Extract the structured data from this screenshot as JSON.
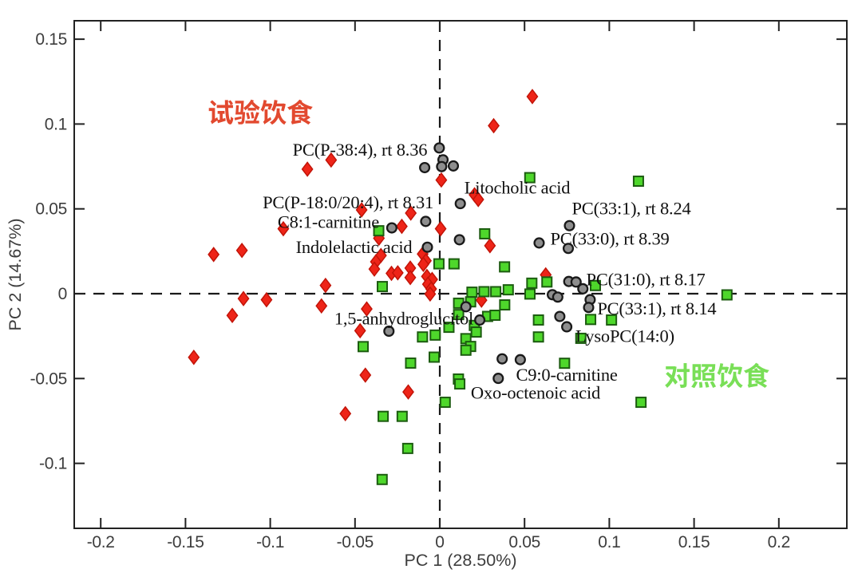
{
  "figure": {
    "kind": "PCA scatter biplot",
    "background": "#ffffff"
  },
  "chart_data": {
    "type": "scatter",
    "title": "",
    "xlabel": "PC 1 (28.50%)",
    "ylabel": "PC 2 (14.67%)",
    "xlim": [
      -0.21563,
      0.24011
    ],
    "ylim": [
      -0.13829,
      0.16087
    ],
    "x_ticks": [
      -0.2,
      -0.15,
      -0.1,
      -0.05,
      0,
      0.05,
      0.1,
      0.15,
      0.2
    ],
    "x_tick_labels": [
      "-0.2",
      "-0.15",
      "-0.1",
      "-0.05",
      "0",
      "0.05",
      "0.1",
      "0.15",
      "0.2"
    ],
    "y_ticks": [
      0.15,
      0.1,
      0.05,
      0,
      -0.05,
      -0.1
    ],
    "y_tick_labels": [
      "0.15",
      "0.1",
      "0.05",
      "0",
      "-0.05",
      "-0.1"
    ],
    "grid": false,
    "legend_position": "none",
    "zero_lines": {
      "x": 0,
      "y": 0,
      "style": "dashed",
      "color": "#1a1a1a"
    },
    "series": [
      {
        "name": "试验饮食",
        "name_en": "experimental diet",
        "marker": "diamond",
        "fill": "#ee2418",
        "edge": "#c21408",
        "points": [
          [
            0.0546,
            0.1162
          ],
          [
            0.0318,
            0.099
          ],
          [
            -0.0781,
            0.0734
          ],
          [
            -0.0641,
            0.0788
          ],
          [
            0.0009,
            0.067
          ],
          [
            0.0205,
            0.0583
          ],
          [
            0.0227,
            0.0555
          ],
          [
            -0.0461,
            0.0494
          ],
          [
            -0.0171,
            0.0475
          ],
          [
            -0.0224,
            0.0397
          ],
          [
            -0.0923,
            0.0383
          ],
          [
            -0.0359,
            0.0327
          ],
          [
            0.0005,
            0.0383
          ],
          [
            -0.1334,
            0.0231
          ],
          [
            -0.1167,
            0.0255
          ],
          [
            0.0296,
            0.0283
          ],
          [
            -0.0347,
            0.0225
          ],
          [
            -0.0101,
            0.0234
          ],
          [
            -0.0377,
            0.0188
          ],
          [
            -0.0082,
            0.0194
          ],
          [
            -0.0097,
            0.0173
          ],
          [
            -0.0386,
            0.0145
          ],
          [
            -0.0174,
            0.0151
          ],
          [
            -0.0285,
            0.012
          ],
          [
            -0.0248,
            0.0123
          ],
          [
            -0.0174,
            0.0095
          ],
          [
            -0.0076,
            0.0102
          ],
          [
            -0.0045,
            0.0084
          ],
          [
            -0.007,
            0.0056
          ],
          [
            -0.0051,
            0.0028
          ],
          [
            -0.0057,
            -0.0002
          ],
          [
            0.0625,
            0.0111
          ],
          [
            -0.0674,
            0.0049
          ],
          [
            -0.1158,
            -0.0029
          ],
          [
            -0.1022,
            -0.0036
          ],
          [
            -0.1224,
            -0.0128
          ],
          [
            -0.0698,
            -0.0072
          ],
          [
            -0.0431,
            -0.009
          ],
          [
            0.0246,
            -0.0038
          ],
          [
            -0.047,
            -0.0218
          ],
          [
            -0.1451,
            -0.0375
          ],
          [
            -0.0439,
            -0.048
          ],
          [
            -0.0186,
            -0.0579
          ],
          [
            -0.0557,
            -0.0707
          ]
        ]
      },
      {
        "name": "对照饮食",
        "name_en": "control diet",
        "marker": "square",
        "fill": "#4ed72b",
        "edge": "#1c5c10",
        "points": [
          [
            0.0531,
            0.0684
          ],
          [
            0.1172,
            0.0663
          ],
          [
            -0.036,
            0.0371
          ],
          [
            0.0265,
            0.0353
          ],
          [
            -0.0005,
            0.0176
          ],
          [
            0.0084,
            0.0176
          ],
          [
            0.0382,
            0.0158
          ],
          [
            0.0543,
            0.0062
          ],
          [
            0.0632,
            0.0069
          ],
          [
            0.0918,
            0.0048
          ],
          [
            -0.0339,
            0.0042
          ],
          [
            0.019,
            0.0009
          ],
          [
            0.0261,
            0.0012
          ],
          [
            0.033,
            0.0012
          ],
          [
            0.0404,
            0.0023
          ],
          [
            0.0532,
            -0.0002
          ],
          [
            0.1694,
            -0.0007
          ],
          [
            0.0111,
            -0.0056
          ],
          [
            0.0182,
            -0.0048
          ],
          [
            0.0282,
            -0.0134
          ],
          [
            0.0383,
            -0.0066
          ],
          [
            0.0326,
            -0.0127
          ],
          [
            0.0111,
            -0.0123
          ],
          [
            0.0054,
            -0.0198
          ],
          [
            0.0204,
            -0.0187
          ],
          [
            0.0215,
            -0.0226
          ],
          [
            0.0582,
            -0.0155
          ],
          [
            0.089,
            -0.0152
          ],
          [
            0.1013,
            -0.0155
          ],
          [
            -0.0102,
            -0.0255
          ],
          [
            -0.0027,
            -0.0244
          ],
          [
            0.0154,
            -0.0265
          ],
          [
            0.0582,
            -0.0255
          ],
          [
            0.0832,
            -0.0263
          ],
          [
            0.0182,
            -0.0311
          ],
          [
            0.0154,
            -0.0333
          ],
          [
            -0.0452,
            -0.0312
          ],
          [
            -0.0033,
            -0.0374
          ],
          [
            -0.0172,
            -0.0409
          ],
          [
            0.011,
            -0.0503
          ],
          [
            0.0118,
            -0.0532
          ],
          [
            0.0736,
            -0.041
          ],
          [
            0.0032,
            -0.064
          ],
          [
            0.1187,
            -0.064
          ],
          [
            -0.0334,
            -0.0723
          ],
          [
            -0.0222,
            -0.0723
          ],
          [
            -0.0189,
            -0.0912
          ],
          [
            -0.034,
            -0.1095
          ]
        ]
      },
      {
        "name": "metabolites",
        "name_en": "metabolite loadings",
        "marker": "circle",
        "fill": "#8e8e8e",
        "edge": "#191919",
        "points": [
          [
            -0.0003,
            0.0859
          ],
          [
            0.0019,
            0.0789
          ],
          [
            0.0011,
            0.0749
          ],
          [
            0.008,
            0.0753
          ],
          [
            -0.0089,
            0.0743
          ],
          [
            0.0121,
            0.0531
          ],
          [
            -0.0083,
            0.0426
          ],
          [
            -0.0283,
            0.0388
          ],
          [
            0.0116,
            0.0318
          ],
          [
            -0.0073,
            0.0274
          ],
          [
            0.0765,
            0.0401
          ],
          [
            0.0586,
            0.0299
          ],
          [
            0.0758,
            0.0267
          ],
          [
            0.0761,
            0.0072
          ],
          [
            0.0804,
            0.0069
          ],
          [
            0.0844,
            0.0029
          ],
          [
            0.0664,
            -0.0006
          ],
          [
            0.0696,
            -0.002
          ],
          [
            0.0887,
            -0.0035
          ],
          [
            0.0878,
            -0.0081
          ],
          [
            0.0708,
            -0.0134
          ],
          [
            0.0749,
            -0.0195
          ],
          [
            0.0154,
            -0.0077
          ],
          [
            0.0236,
            -0.0155
          ],
          [
            -0.03,
            -0.0221
          ],
          [
            0.0368,
            -0.0384
          ],
          [
            0.0475,
            -0.0389
          ],
          [
            0.0345,
            -0.0499
          ]
        ]
      }
    ],
    "annotations": [
      {
        "text": "PC(P-38:4), rt 8.36",
        "x": -0.0471,
        "y": 0.0847
      },
      {
        "text": "PC(P-18:0/20:4), rt 8.31",
        "x": -0.0541,
        "y": 0.0536
      },
      {
        "text": "C8:1-carnitine",
        "x": -0.0657,
        "y": 0.0421
      },
      {
        "text": "Indolelactic acid",
        "x": -0.0506,
        "y": 0.0273
      },
      {
        "text": "Litocholic acid",
        "x": 0.0457,
        "y": 0.0623
      },
      {
        "text": "PC(33:1), rt 8.24",
        "x": 0.113,
        "y": 0.0501
      },
      {
        "text": "PC(33:0), rt 8.39",
        "x": 0.1003,
        "y": 0.0322
      },
      {
        "text": "PC(31:0), rt 8.17",
        "x": 0.1215,
        "y": 0.0082
      },
      {
        "text": "PC(33:1), rt 8.14",
        "x": 0.128,
        "y": -0.0089
      },
      {
        "text": "LysoPC(14:0)",
        "x": 0.1092,
        "y": -0.0252
      },
      {
        "text": "1,5-anhydroglucitol",
        "x": -0.0212,
        "y": -0.0148
      },
      {
        "text": "C9:0-carnitine",
        "x": 0.0749,
        "y": -0.048
      },
      {
        "text": "Oxo-octenoic acid",
        "x": 0.0565,
        "y": -0.0586
      }
    ],
    "group_labels": [
      {
        "text": "试验饮食",
        "meaning": "experimental diet",
        "x": -0.1059,
        "y": 0.1072,
        "color": "#e2492f"
      },
      {
        "text": "对照饮食",
        "meaning": "control diet",
        "x": 0.1634,
        "y": -0.048,
        "color": "#79df57"
      }
    ],
    "style": {
      "axis_color": "#222222",
      "tick_label_color": "#3d3d3d",
      "annotation_color": "#101010"
    }
  }
}
